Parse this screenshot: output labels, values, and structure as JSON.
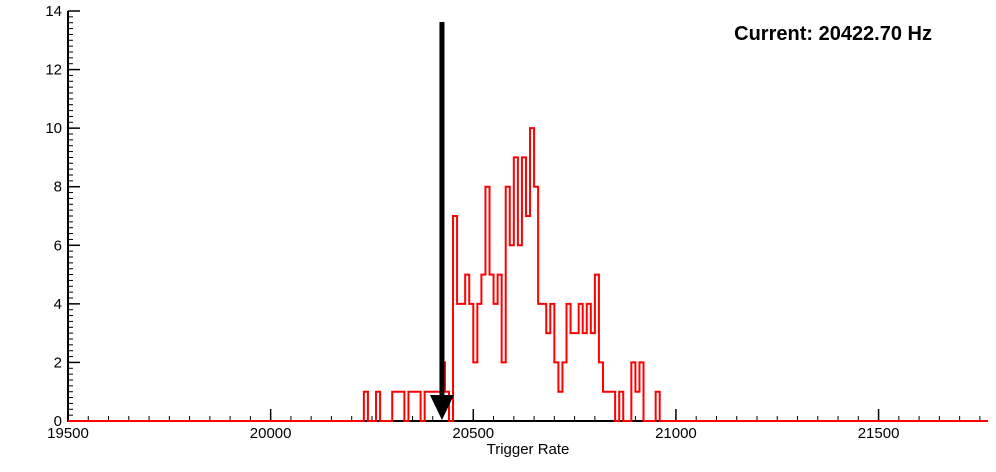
{
  "annotation": {
    "text": "Current: 20422.70 Hz",
    "current_value_hz": 20422.7
  },
  "axes": {
    "xlabel": "Trigger Rate",
    "x_tick_labels": [
      "19500",
      "20000",
      "20500",
      "21000",
      "21500"
    ],
    "x_ticks": [
      19500,
      20000,
      20500,
      21000,
      21500
    ],
    "y_tick_labels": [
      "0",
      "2",
      "4",
      "6",
      "8",
      "10",
      "12",
      "14"
    ],
    "y_ticks": [
      0,
      2,
      4,
      6,
      8,
      10,
      12,
      14
    ],
    "xlim": [
      19500,
      21770
    ],
    "ylim": [
      0,
      14
    ],
    "x_minor_step": 50,
    "y_minor_step": 0.2
  },
  "chart_data": {
    "type": "bar",
    "style": "step-histogram",
    "title": "",
    "xlabel": "Trigger Rate",
    "ylabel": "",
    "xlim": [
      19500,
      21770
    ],
    "ylim": [
      0,
      14
    ],
    "grid": false,
    "legend": false,
    "bin_width": 10,
    "bin_start": 20230,
    "counts": [
      1,
      0,
      0,
      1,
      0,
      0,
      0,
      1,
      1,
      1,
      0,
      1,
      1,
      1,
      0,
      1,
      1,
      1,
      1,
      2,
      1,
      0,
      7,
      4,
      4,
      5,
      4,
      2,
      4,
      5,
      8,
      5,
      4,
      5,
      2,
      8,
      6,
      9,
      6,
      9,
      7,
      10,
      8,
      4,
      4,
      3,
      4,
      2,
      1,
      2,
      4,
      3,
      3,
      4,
      3,
      4,
      3,
      5,
      2,
      1,
      1,
      1,
      0,
      1,
      0,
      0,
      2,
      1,
      2,
      0,
      0,
      0,
      1
    ],
    "series_color": "#ff0000",
    "axis_color": "#000000",
    "marker": {
      "type": "down-arrow",
      "x": 20422.7,
      "color": "#000000"
    }
  }
}
